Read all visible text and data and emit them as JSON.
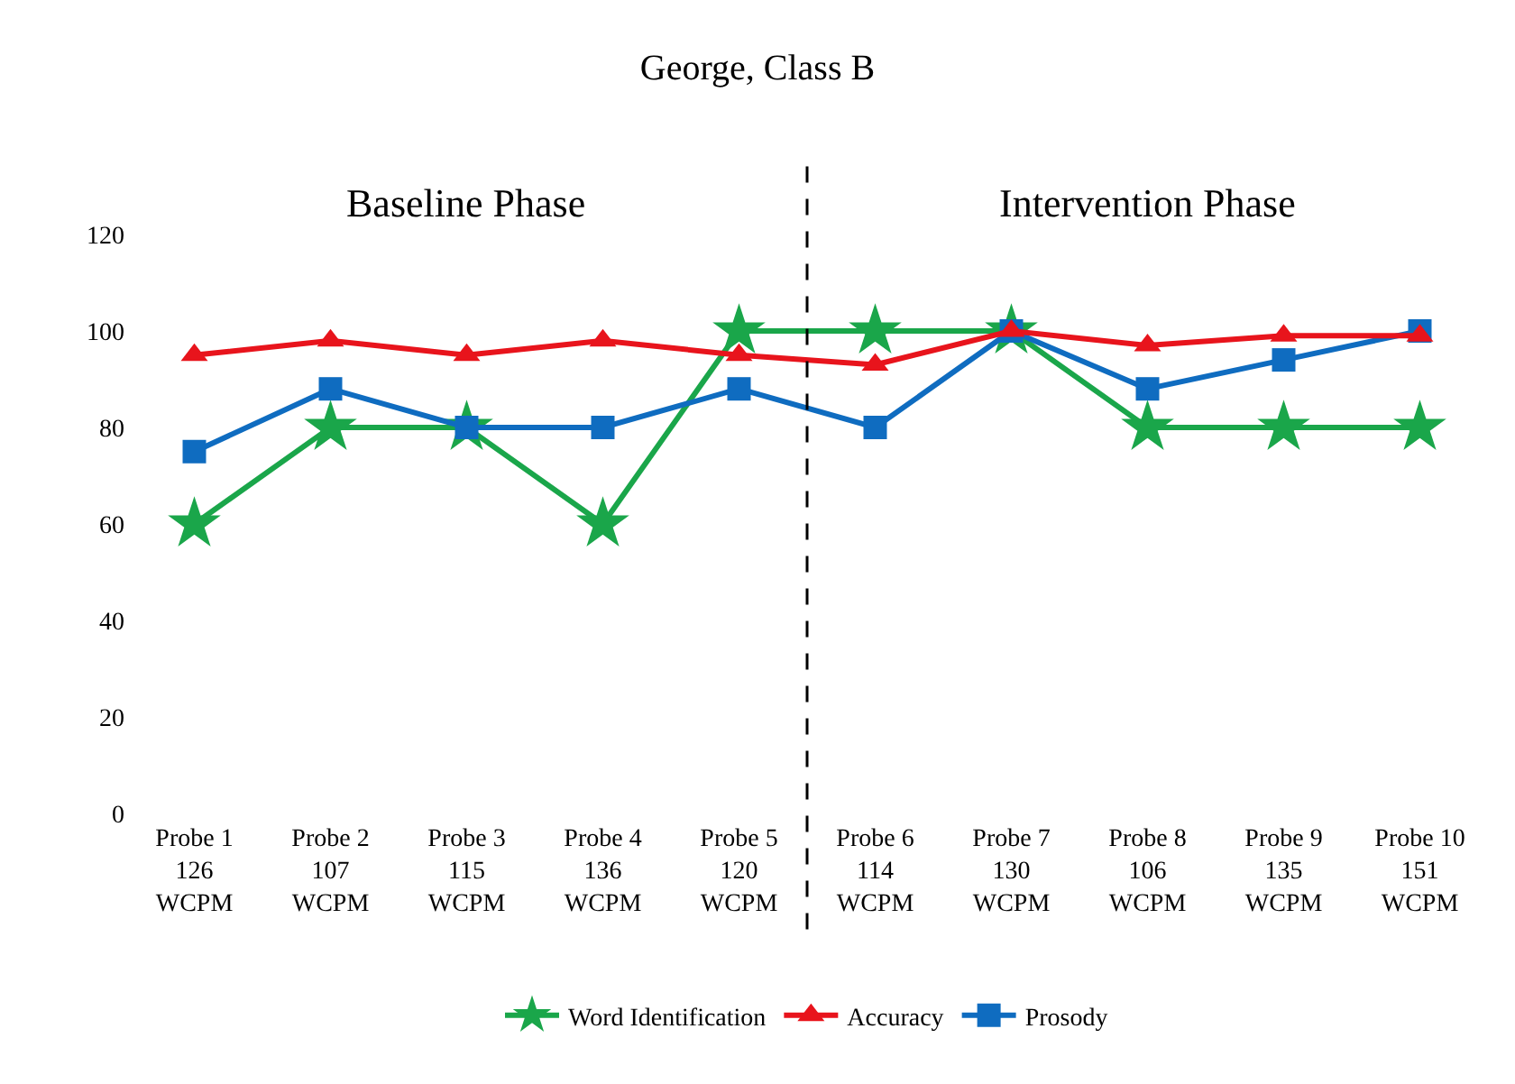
{
  "chart_data": {
    "type": "line",
    "title": "George, Class B",
    "categories": [
      "Probe 1\n126\nWCPM",
      "Probe 2\n107\nWCPM",
      "Probe 3\n115\nWCPM",
      "Probe 4\n136\nWCPM",
      "Probe 5\n120\nWCPM",
      "Probe 6\n114\nWCPM",
      "Probe 7\n130\nWCPM",
      "Probe 8\n106\nWCPM",
      "Probe 9\n135\nWCPM",
      "Probe 10\n151\nWCPM"
    ],
    "series": [
      {
        "name": "Word Identification",
        "color": "#1aa64a",
        "marker": "star",
        "values": [
          60,
          80,
          80,
          60,
          100,
          100,
          100,
          80,
          80,
          80
        ]
      },
      {
        "name": "Accuracy",
        "color": "#e8141c",
        "marker": "triangle",
        "values": [
          95,
          98,
          95,
          98,
          95,
          93,
          100,
          97,
          99,
          99
        ]
      },
      {
        "name": "Prosody",
        "color": "#0f6cc0",
        "marker": "square",
        "values": [
          75,
          88,
          80,
          80,
          88,
          80,
          100,
          88,
          94,
          100
        ]
      }
    ],
    "ylim": [
      0,
      120
    ],
    "yticks": [
      0,
      20,
      40,
      60,
      80,
      100,
      120
    ],
    "legend": "bottom",
    "annotations": [
      "Baseline Phase",
      "Intervention Phase"
    ]
  }
}
